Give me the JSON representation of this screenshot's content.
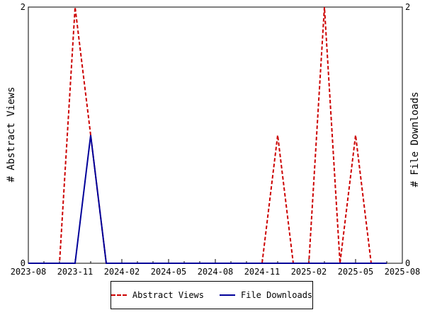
{
  "chart_data": {
    "type": "line",
    "x_ticks": [
      "2023-08",
      "2023-11",
      "2024-02",
      "2024-05",
      "2024-08",
      "2024-11",
      "2025-02",
      "2025-05",
      "2025-08"
    ],
    "x_range": [
      "2023-08",
      "2025-08"
    ],
    "ylabel_left": "# Abstract Views",
    "ylabel_right": "# File Downloads",
    "y_left_ticks": [
      "0",
      "2"
    ],
    "y_right_ticks": [
      "0",
      "2"
    ],
    "ylim_left": [
      0,
      2
    ],
    "ylim_right": [
      0,
      2
    ],
    "x": [
      "2023-08",
      "2023-09",
      "2023-10",
      "2023-11",
      "2023-12",
      "2024-01",
      "2024-02",
      "2024-03",
      "2024-04",
      "2024-05",
      "2024-06",
      "2024-07",
      "2024-08",
      "2024-09",
      "2024-10",
      "2024-11",
      "2024-12",
      "2025-01",
      "2025-02",
      "2025-03",
      "2025-04",
      "2025-05",
      "2025-06",
      "2025-07"
    ],
    "series": [
      {
        "name": "Abstract Views",
        "color": "#cc0000",
        "dash": "dashed",
        "axis": "left",
        "values": [
          0,
          0,
          0,
          2,
          1,
          0,
          0,
          0,
          0,
          0,
          0,
          0,
          0,
          0,
          0,
          0,
          1,
          0,
          0,
          2,
          0,
          1,
          0,
          0
        ]
      },
      {
        "name": "File Downloads",
        "color": "#000099",
        "dash": "solid",
        "axis": "right",
        "values": [
          0,
          0,
          0,
          0,
          1,
          0,
          0,
          0,
          0,
          0,
          0,
          0,
          0,
          0,
          0,
          0,
          0,
          0,
          0,
          0,
          0,
          0,
          0,
          0
        ]
      }
    ],
    "grid": false,
    "legend_placement": "bottom"
  }
}
